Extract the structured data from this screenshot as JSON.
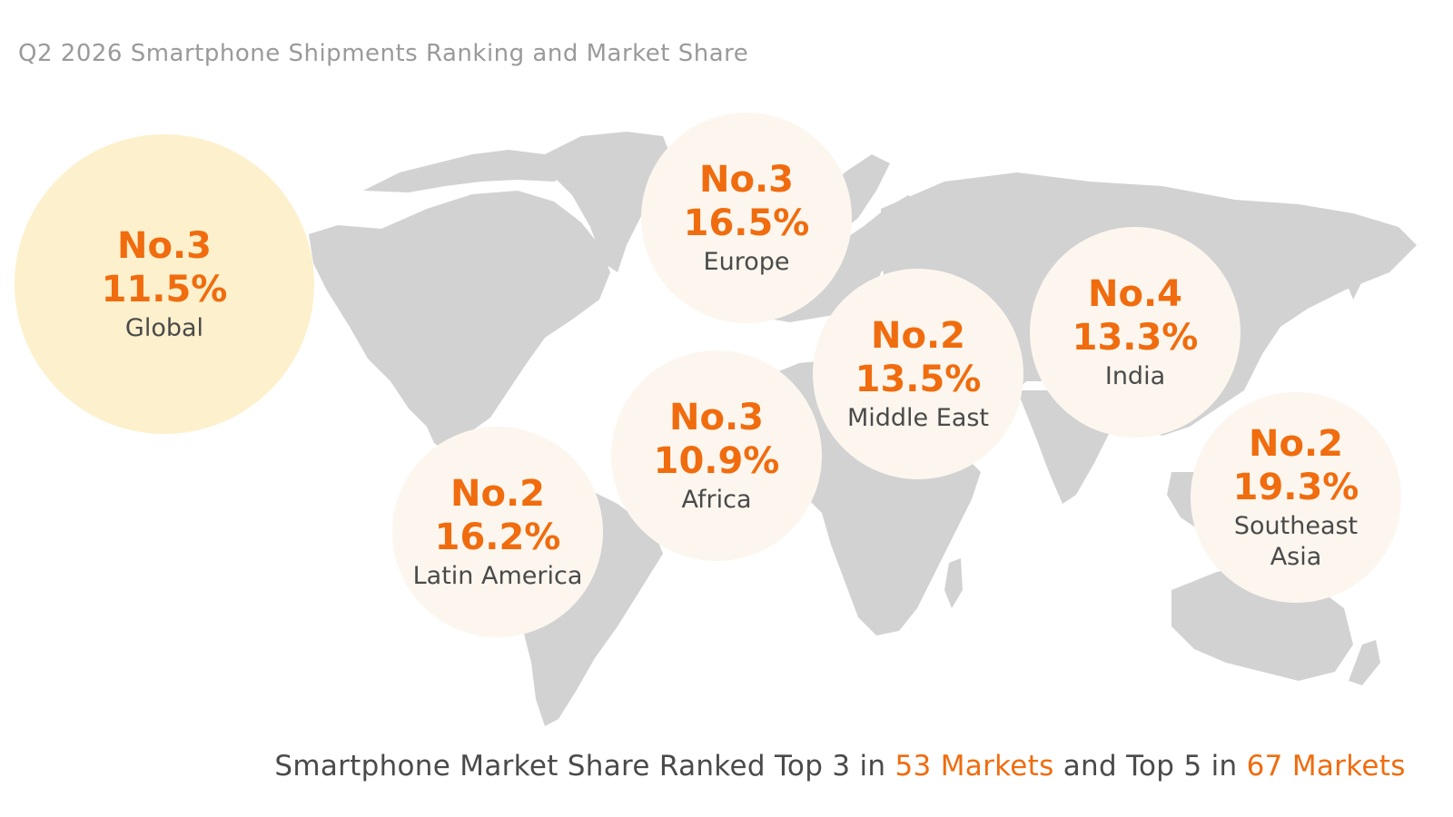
{
  "title": "Q2 2026 Smartphone Shipments Ranking and Market Share",
  "colors": {
    "accent": "#f06c0e",
    "land": "#d2d2d2",
    "bubble": "#fcf6ee",
    "global_bubble": "#fdf0cc",
    "text": "#4a4a4a",
    "title": "#9a9a9a"
  },
  "regions": {
    "global": {
      "rank": "No.3",
      "share": "11.5%",
      "name": "Global"
    },
    "europe": {
      "rank": "No.3",
      "share": "16.5%",
      "name": "Europe"
    },
    "middle_east": {
      "rank": "No.2",
      "share": "13.5%",
      "name": "Middle East"
    },
    "india": {
      "rank": "No.4",
      "share": "13.3%",
      "name": "India"
    },
    "africa": {
      "rank": "No.3",
      "share": "10.9%",
      "name": "Africa"
    },
    "latin_america": {
      "rank": "No.2",
      "share": "16.2%",
      "name": "Latin America"
    },
    "southeast_asia": {
      "rank": "No.2",
      "share": "19.3%",
      "name": "Southeast\nAsia"
    }
  },
  "footer": {
    "part1": "Smartphone Market Share Ranked Top 3 in ",
    "highlight1": "53 Markets",
    "part2": " and Top 5 in ",
    "highlight2": "67 Markets"
  }
}
